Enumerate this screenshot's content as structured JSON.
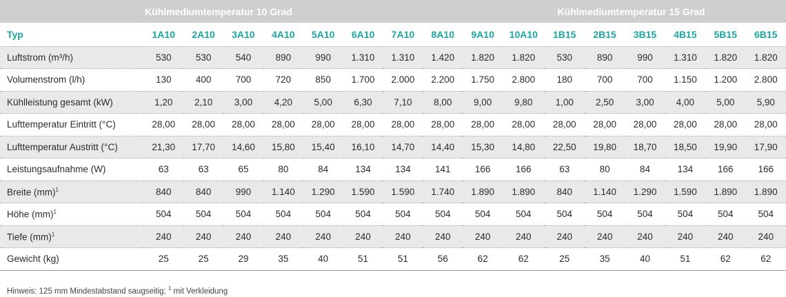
{
  "groups": {
    "g10": "Kühlmediumtemperatur 10 Grad",
    "g15": "Kühlmediumtemperatur 15 Grad"
  },
  "type_label": "Typ",
  "types": [
    "1A10",
    "2A10",
    "3A10",
    "4A10",
    "5A10",
    "6A10",
    "7A10",
    "8A10",
    "9A10",
    "10A10",
    "1B15",
    "2B15",
    "3B15",
    "4B15",
    "5B15",
    "6B15"
  ],
  "rows": [
    {
      "label": "Luftstrom (m³/h)",
      "sup": "",
      "values": [
        "530",
        "530",
        "540",
        "890",
        "990",
        "1.310",
        "1.310",
        "1.420",
        "1.820",
        "1.820",
        "530",
        "890",
        "990",
        "1.310",
        "1.820",
        "1.820"
      ]
    },
    {
      "label": "Volumenstrom (l/h)",
      "sup": "",
      "values": [
        "130",
        "400",
        "700",
        "720",
        "850",
        "1.700",
        "2.000",
        "2.200",
        "1.750",
        "2.800",
        "180",
        "700",
        "700",
        "1.150",
        "1.200",
        "2.800"
      ]
    },
    {
      "label": "Kühlleistung gesamt (kW)",
      "sup": "",
      "values": [
        "1,20",
        "2,10",
        "3,00",
        "4,20",
        "5,00",
        "6,30",
        "7,10",
        "8,00",
        "9,00",
        "9,80",
        "1,00",
        "2,50",
        "3,00",
        "4,00",
        "5,00",
        "5,90"
      ]
    },
    {
      "label": "Lufttemperatur Eintritt (°C)",
      "sup": "",
      "values": [
        "28,00",
        "28,00",
        "28,00",
        "28,00",
        "28,00",
        "28,00",
        "28,00",
        "28,00",
        "28,00",
        "28,00",
        "28,00",
        "28,00",
        "28,00",
        "28,00",
        "28,00",
        "28,00"
      ]
    },
    {
      "label": "Lufttemperatur Austritt (°C)",
      "sup": "",
      "values": [
        "21,30",
        "17,70",
        "14,60",
        "15,80",
        "15,40",
        "16,10",
        "14,70",
        "14,40",
        "15,30",
        "14,80",
        "22,50",
        "19,80",
        "18,70",
        "18,50",
        "19,90",
        "17,90"
      ]
    },
    {
      "label": "Leistungsaufnahme (W)",
      "sup": "",
      "values": [
        "63",
        "63",
        "65",
        "80",
        "84",
        "134",
        "134",
        "141",
        "166",
        "166",
        "63",
        "80",
        "84",
        "134",
        "166",
        "166"
      ]
    },
    {
      "label": "Breite (mm)",
      "sup": "1",
      "values": [
        "840",
        "840",
        "990",
        "1.140",
        "1.290",
        "1.590",
        "1.590",
        "1.740",
        "1.890",
        "1.890",
        "840",
        "1.140",
        "1.290",
        "1.590",
        "1.890",
        "1.890"
      ]
    },
    {
      "label": "Höhe (mm)",
      "sup": "1",
      "values": [
        "504",
        "504",
        "504",
        "504",
        "504",
        "504",
        "504",
        "504",
        "504",
        "504",
        "504",
        "504",
        "504",
        "504",
        "504",
        "504"
      ]
    },
    {
      "label": "Tiefe (mm)",
      "sup": "1",
      "values": [
        "240",
        "240",
        "240",
        "240",
        "240",
        "240",
        "240",
        "240",
        "240",
        "240",
        "240",
        "240",
        "240",
        "240",
        "240",
        "240"
      ]
    },
    {
      "label": "Gewicht (kg)",
      "sup": "",
      "values": [
        "25",
        "25",
        "29",
        "35",
        "40",
        "51",
        "51",
        "56",
        "62",
        "62",
        "25",
        "35",
        "40",
        "51",
        "62",
        "62"
      ]
    }
  ],
  "note": {
    "text": "Hinweis: 125 mm Mindestabstand saugseitig; ",
    "sup": "1",
    "suffix": " mit Verkleidung"
  }
}
